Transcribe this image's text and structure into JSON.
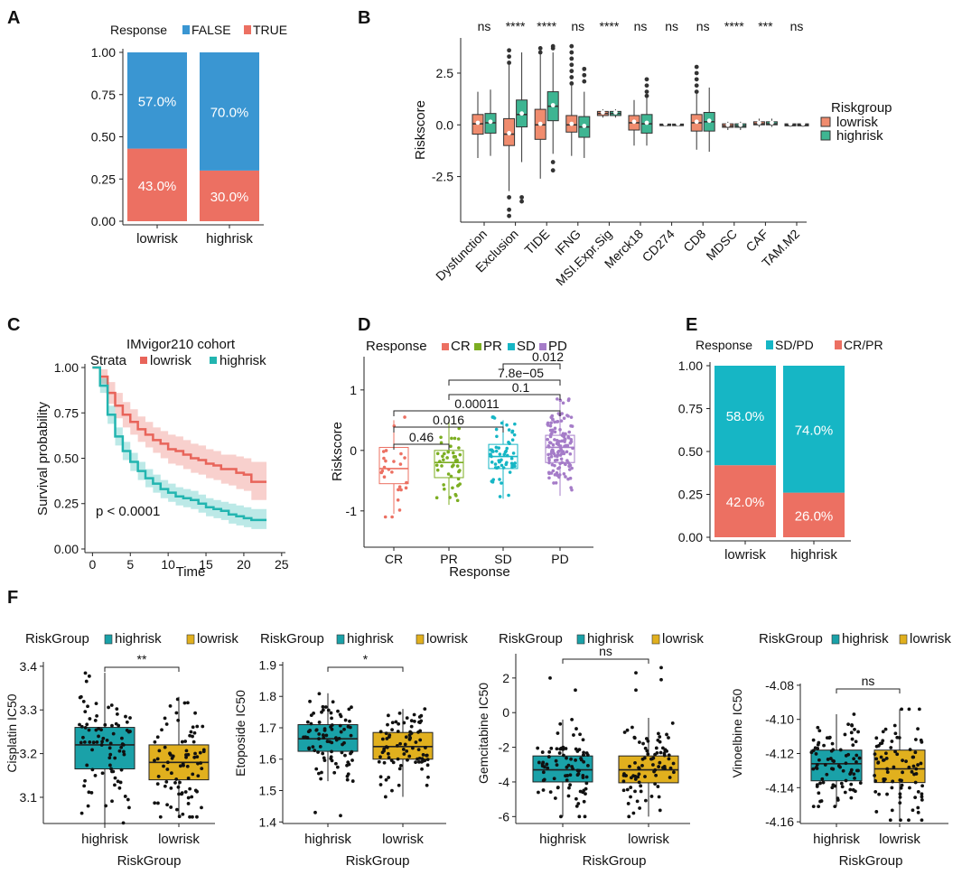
{
  "colors": {
    "false_blue": "#3A96D2",
    "true_red": "#EC7062",
    "box_low": "#F08C6E",
    "box_high": "#3EB592",
    "strata_low": "#E8645A",
    "strata_high": "#22B5B0",
    "cr": "#EC7062",
    "pr": "#7CAE22",
    "sd": "#16B6C5",
    "pd": "#A57CC8",
    "teal": "#1AA1A8",
    "gold": "#E1B01E"
  },
  "panel_labels": [
    "A",
    "B",
    "C",
    "D",
    "E",
    "F"
  ],
  "chart_data": [
    {
      "panel": "A",
      "type": "bar",
      "stacked": true,
      "legend_title": "Response",
      "legend": [
        "FALSE",
        "TRUE"
      ],
      "categories": [
        "lowrisk",
        "highrisk"
      ],
      "series": [
        {
          "name": "FALSE",
          "values": [
            0.57,
            0.7
          ],
          "labels": [
            "57.0%",
            "70.0%"
          ]
        },
        {
          "name": "TRUE",
          "values": [
            0.43,
            0.3
          ],
          "labels": [
            "43.0%",
            "30.0%"
          ]
        }
      ],
      "yticks": [
        "0.00",
        "0.25",
        "0.50",
        "0.75",
        "1.00"
      ],
      "ylim": [
        0,
        1
      ]
    },
    {
      "panel": "B",
      "type": "box",
      "ylabel": "Riskscore",
      "yticks": [
        "-2.5",
        "0.0",
        "2.5"
      ],
      "ytick_values": [
        -2.5,
        0,
        2.5
      ],
      "ylim": [
        -4.7,
        4.2
      ],
      "legend_title": "Riskgroup",
      "legend": [
        "lowrisk",
        "highrisk"
      ],
      "categories": [
        "Dysfunction",
        "Exclusion",
        "TIDE",
        "IFNG",
        "MSI.Expr.Sig",
        "Merck18",
        "CD274",
        "CD8",
        "MDSC",
        "CAF",
        "TAM.M2"
      ],
      "significance": [
        "ns",
        "****",
        "****",
        "ns",
        "****",
        "ns",
        "ns",
        "ns",
        "****",
        "***",
        "ns"
      ],
      "series": [
        {
          "name": "lowrisk",
          "boxes": [
            {
              "q1": -0.45,
              "med": 0.05,
              "q3": 0.5,
              "lo": -1.6,
              "hi": 1.6
            },
            {
              "q1": -1.0,
              "med": -0.45,
              "q3": 0.3,
              "lo": -3.2,
              "hi": 2.9
            },
            {
              "q1": -0.7,
              "med": 0.0,
              "q3": 0.75,
              "lo": -2.6,
              "hi": 3.4
            },
            {
              "q1": -0.35,
              "med": 0.0,
              "q3": 0.45,
              "lo": -1.5,
              "hi": 1.9
            },
            {
              "q1": 0.45,
              "med": 0.55,
              "q3": 0.65,
              "lo": 0.35,
              "hi": 0.75
            },
            {
              "q1": -0.25,
              "med": 0.1,
              "q3": 0.45,
              "lo": -1.0,
              "hi": 1.2
            },
            {
              "q1": -0.04,
              "med": 0.0,
              "q3": 0.04,
              "lo": -0.08,
              "hi": 0.08
            },
            {
              "q1": -0.3,
              "med": 0.1,
              "q3": 0.5,
              "lo": -1.2,
              "hi": 1.5
            },
            {
              "q1": -0.12,
              "med": -0.05,
              "q3": 0.05,
              "lo": -0.25,
              "hi": 0.15
            },
            {
              "q1": 0.0,
              "med": 0.05,
              "q3": 0.15,
              "lo": -0.1,
              "hi": 0.3
            },
            {
              "q1": -0.05,
              "med": 0.0,
              "q3": 0.05,
              "lo": -0.1,
              "hi": 0.1
            }
          ]
        },
        {
          "name": "highrisk",
          "boxes": [
            {
              "q1": -0.4,
              "med": 0.1,
              "q3": 0.55,
              "lo": -1.5,
              "hi": 1.7
            },
            {
              "q1": -0.1,
              "med": 0.5,
              "q3": 1.2,
              "lo": -1.8,
              "hi": 3.5
            },
            {
              "q1": 0.2,
              "med": 0.9,
              "q3": 1.6,
              "lo": -1.4,
              "hi": 3.5
            },
            {
              "q1": -0.6,
              "med": -0.1,
              "q3": 0.4,
              "lo": -1.6,
              "hi": 1.6
            },
            {
              "q1": 0.45,
              "med": 0.55,
              "q3": 0.65,
              "lo": 0.35,
              "hi": 0.75
            },
            {
              "q1": -0.4,
              "med": 0.05,
              "q3": 0.5,
              "lo": -1.0,
              "hi": 1.3
            },
            {
              "q1": -0.04,
              "med": 0.0,
              "q3": 0.04,
              "lo": -0.08,
              "hi": 0.08
            },
            {
              "q1": -0.3,
              "med": 0.15,
              "q3": 0.6,
              "lo": -1.3,
              "hi": 1.8
            },
            {
              "q1": -0.12,
              "med": -0.05,
              "q3": 0.05,
              "lo": -0.25,
              "hi": 0.15
            },
            {
              "q1": 0.0,
              "med": 0.05,
              "q3": 0.15,
              "lo": -0.1,
              "hi": 0.3
            },
            {
              "q1": -0.05,
              "med": 0.0,
              "q3": 0.05,
              "lo": -0.1,
              "hi": 0.1
            }
          ]
        }
      ]
    },
    {
      "panel": "C",
      "type": "line",
      "title": "IMvigor210 cohort",
      "legend_title": "Strata",
      "legend": [
        "lowrisk",
        "highrisk"
      ],
      "xlabel": "Time",
      "ylabel": "Survival probability",
      "xticks": [
        "0",
        "5",
        "10",
        "15",
        "20",
        "25"
      ],
      "yticks": [
        "0.00",
        "0.25",
        "0.50",
        "0.75",
        "1.00"
      ],
      "xlim": [
        -1,
        25.5
      ],
      "ylim": [
        -0.02,
        1.02
      ],
      "annotation": "p < 0.0001",
      "series": [
        {
          "name": "lowrisk",
          "x": [
            0,
            1,
            2,
            3,
            4,
            5,
            6,
            7,
            8,
            9,
            10,
            11,
            12,
            13,
            14,
            15,
            16,
            17,
            18,
            19,
            20,
            21,
            22,
            23
          ],
          "y": [
            1.0,
            0.95,
            0.86,
            0.79,
            0.74,
            0.7,
            0.66,
            0.63,
            0.6,
            0.58,
            0.55,
            0.54,
            0.52,
            0.5,
            0.49,
            0.47,
            0.46,
            0.44,
            0.44,
            0.42,
            0.41,
            0.37,
            0.37,
            0.37
          ],
          "lower": [
            1.0,
            0.91,
            0.8,
            0.72,
            0.67,
            0.63,
            0.59,
            0.56,
            0.53,
            0.5,
            0.47,
            0.46,
            0.44,
            0.42,
            0.41,
            0.39,
            0.38,
            0.36,
            0.35,
            0.33,
            0.32,
            0.27,
            0.27,
            0.27
          ],
          "upper": [
            1.0,
            0.99,
            0.92,
            0.86,
            0.81,
            0.77,
            0.73,
            0.7,
            0.67,
            0.65,
            0.63,
            0.62,
            0.6,
            0.58,
            0.57,
            0.55,
            0.54,
            0.52,
            0.52,
            0.51,
            0.5,
            0.48,
            0.48,
            0.48
          ]
        },
        {
          "name": "highrisk",
          "x": [
            0,
            1,
            2,
            3,
            4,
            5,
            6,
            7,
            8,
            9,
            10,
            11,
            12,
            13,
            14,
            15,
            16,
            17,
            18,
            19,
            20,
            21,
            22,
            23
          ],
          "y": [
            1.0,
            0.9,
            0.74,
            0.62,
            0.54,
            0.48,
            0.43,
            0.39,
            0.36,
            0.33,
            0.31,
            0.29,
            0.28,
            0.27,
            0.25,
            0.23,
            0.22,
            0.21,
            0.19,
            0.18,
            0.17,
            0.16,
            0.16,
            0.16
          ],
          "lower": [
            1.0,
            0.86,
            0.69,
            0.57,
            0.49,
            0.43,
            0.38,
            0.34,
            0.31,
            0.28,
            0.26,
            0.24,
            0.23,
            0.22,
            0.2,
            0.18,
            0.17,
            0.16,
            0.14,
            0.13,
            0.12,
            0.11,
            0.11,
            0.11
          ],
          "upper": [
            1.0,
            0.94,
            0.79,
            0.67,
            0.59,
            0.53,
            0.48,
            0.44,
            0.41,
            0.38,
            0.36,
            0.34,
            0.33,
            0.32,
            0.3,
            0.28,
            0.27,
            0.26,
            0.25,
            0.24,
            0.23,
            0.22,
            0.22,
            0.22
          ]
        }
      ]
    },
    {
      "panel": "D",
      "type": "box",
      "legend_title": "Response",
      "legend": [
        "CR",
        "PR",
        "SD",
        "PD"
      ],
      "categories": [
        "CR",
        "PR",
        "SD",
        "PD"
      ],
      "xlabel": "Response",
      "ylabel": "Riskscore",
      "yticks": [
        "-1",
        "0",
        "1"
      ],
      "ytick_values": [
        -1,
        0,
        1
      ],
      "ylim": [
        -1.6,
        1.55
      ],
      "boxes": [
        {
          "q1": -0.55,
          "med": -0.3,
          "q3": 0.05,
          "lo": -1.05,
          "hi": 0.5,
          "n": 25
        },
        {
          "q1": -0.45,
          "med": -0.2,
          "q3": 0.0,
          "lo": -0.9,
          "hi": 0.5,
          "n": 45
        },
        {
          "q1": -0.3,
          "med": -0.1,
          "q3": 0.1,
          "lo": -0.8,
          "hi": 0.5,
          "n": 60
        },
        {
          "q1": -0.2,
          "med": 0.05,
          "q3": 0.25,
          "lo": -0.75,
          "hi": 0.8,
          "n": 130
        }
      ],
      "comparisons": [
        {
          "a": "CR",
          "b": "PR",
          "p": "0.46"
        },
        {
          "a": "CR",
          "b": "SD",
          "p": "0.016"
        },
        {
          "a": "CR",
          "b": "PD",
          "p": "0.00011"
        },
        {
          "a": "PR",
          "b": "PD",
          "p": "0.1"
        },
        {
          "a": "PR",
          "b": "PD",
          "p": "7.8e−05"
        },
        {
          "a": "SD",
          "b": "PD",
          "p": "0.012"
        }
      ]
    },
    {
      "panel": "E",
      "type": "bar",
      "stacked": true,
      "legend_title": "Response",
      "legend": [
        "SD/PD",
        "CR/PR"
      ],
      "categories": [
        "lowrisk",
        "highrisk"
      ],
      "series": [
        {
          "name": "SD/PD",
          "values": [
            0.58,
            0.74
          ],
          "labels": [
            "58.0%",
            "74.0%"
          ]
        },
        {
          "name": "CR/PR",
          "values": [
            0.42,
            0.26
          ],
          "labels": [
            "42.0%",
            "26.0%"
          ]
        }
      ],
      "yticks": [
        "0.00",
        "0.25",
        "0.50",
        "0.75",
        "1.00"
      ],
      "ylim": [
        0,
        1
      ]
    },
    {
      "panel": "F1",
      "type": "box",
      "legend_title": "RiskGroup",
      "legend": [
        "highrisk",
        "lowrisk"
      ],
      "categories": [
        "highrisk",
        "lowrisk"
      ],
      "xlabel": "RiskGroup",
      "ylabel": "Cisplatin IC50",
      "significance": "**",
      "yticks": [
        "3.1",
        "3.2",
        "3.3",
        "3.4"
      ],
      "ytick_values": [
        3.1,
        3.2,
        3.3,
        3.4
      ],
      "ylim": [
        3.04,
        3.41
      ],
      "boxes": [
        {
          "q1": 3.165,
          "med": 3.22,
          "q3": 3.26,
          "lo": 3.03,
          "hi": 3.385
        },
        {
          "q1": 3.14,
          "med": 3.18,
          "q3": 3.22,
          "lo": 3.055,
          "hi": 3.33
        }
      ]
    },
    {
      "panel": "F2",
      "type": "box",
      "legend_title": "RiskGroup",
      "legend": [
        "highrisk",
        "lowrisk"
      ],
      "categories": [
        "highrisk",
        "lowrisk"
      ],
      "xlabel": "RiskGroup",
      "ylabel": "Etoposide IC50",
      "significance": "*",
      "yticks": [
        "1.4",
        "1.5",
        "1.6",
        "1.7",
        "1.8",
        "1.9"
      ],
      "ytick_values": [
        1.4,
        1.5,
        1.6,
        1.7,
        1.8,
        1.9
      ],
      "ylim": [
        1.395,
        1.91
      ],
      "boxes": [
        {
          "q1": 1.625,
          "med": 1.665,
          "q3": 1.71,
          "lo": 1.53,
          "hi": 1.81
        },
        {
          "q1": 1.6,
          "med": 1.64,
          "q3": 1.685,
          "lo": 1.48,
          "hi": 1.76
        }
      ]
    },
    {
      "panel": "F3",
      "type": "box",
      "legend_title": "RiskGroup",
      "legend": [
        "highrisk",
        "lowrisk"
      ],
      "categories": [
        "highrisk",
        "lowrisk"
      ],
      "xlabel": "RiskGroup",
      "ylabel": "Gemcitabine IC50",
      "significance": "ns",
      "yticks": [
        "-6",
        "-4",
        "-2",
        "0",
        "2"
      ],
      "ytick_values": [
        -6,
        -4,
        -2,
        0,
        2
      ],
      "ylim": [
        -6.4,
        3.4
      ],
      "boxes": [
        {
          "q1": -4.0,
          "med": -3.3,
          "q3": -2.5,
          "lo": -6.0,
          "hi": -0.4
        },
        {
          "q1": -4.05,
          "med": -3.3,
          "q3": -2.5,
          "lo": -6.0,
          "hi": -0.3
        }
      ]
    },
    {
      "panel": "F4",
      "type": "box",
      "legend_title": "RiskGroup",
      "legend": [
        "highrisk",
        "lowrisk"
      ],
      "categories": [
        "highrisk",
        "lowrisk"
      ],
      "xlabel": "RiskGroup",
      "ylabel": "Vinoelbine IC50",
      "significance": "ns",
      "yticks": [
        "-4.16",
        "-4.14",
        "-4.12",
        "-4.10",
        "-4.08"
      ],
      "ytick_values": [
        -4.16,
        -4.14,
        -4.12,
        -4.1,
        -4.08
      ],
      "ylim": [
        -4.161,
        -4.079
      ],
      "boxes": [
        {
          "q1": -4.136,
          "med": -4.126,
          "q3": -4.118,
          "lo": -4.151,
          "hi": -4.097
        },
        {
          "q1": -4.137,
          "med": -4.129,
          "q3": -4.118,
          "lo": -4.159,
          "hi": -4.094
        }
      ]
    }
  ]
}
